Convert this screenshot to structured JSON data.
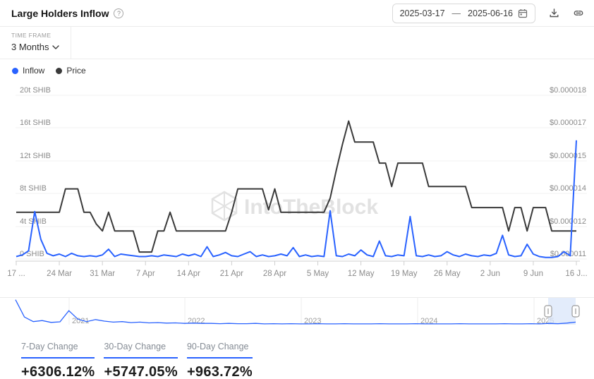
{
  "header": {
    "title": "Large Holders Inflow",
    "date_range": {
      "start": "2025-03-17",
      "separator": "—",
      "end": "2025-06-16"
    }
  },
  "toolbar": {
    "time_frame_label": "TIME FRAME",
    "time_frame_value": "3 Months"
  },
  "legend": [
    {
      "label": "Inflow",
      "color": "#2962ff"
    },
    {
      "label": "Price",
      "color": "#3a3a3a"
    }
  ],
  "watermark": "IntoTheBlock",
  "chart_data": [
    {
      "type": "line",
      "title": "Large Holders Inflow",
      "start_date": "2025-03-17",
      "end_date": "2025-06-16",
      "x_tick_labels": [
        "17 ...",
        "24 Mar",
        "31 Mar",
        "7 Apr",
        "14 Apr",
        "21 Apr",
        "28 Apr",
        "5 May",
        "12 May",
        "19 May",
        "26 May",
        "2 Jun",
        "9 Jun",
        "16 J..."
      ],
      "x_tick_days": [
        0,
        7,
        14,
        21,
        28,
        35,
        42,
        49,
        56,
        63,
        70,
        77,
        84,
        91
      ],
      "left_axis": {
        "unit": "SHIB",
        "ticks_bottom_to_top": [
          "0 SHIB",
          "4t SHIB",
          "8t SHIB",
          "12t SHIB",
          "16t SHIB",
          "20t SHIB"
        ],
        "range_trillions": [
          0,
          20
        ]
      },
      "right_axis": {
        "unit": "USD",
        "ticks_bottom_to_top": [
          "$0.000011",
          "$0.000012",
          "$0.000014",
          "$0.000015",
          "$0.000017",
          "$0.000018"
        ],
        "range_usd": [
          1.1e-05,
          1.8e-05
        ]
      },
      "grid": true,
      "legend_position": "top-left",
      "series": [
        {
          "name": "Inflow",
          "axis": "left",
          "unit": "trillion SHIB",
          "color": "#2962ff",
          "values": [
            0.3,
            0.5,
            1.0,
            5.8,
            2.4,
            0.7,
            0.4,
            0.6,
            0.3,
            0.7,
            0.4,
            0.3,
            0.4,
            0.3,
            0.5,
            1.2,
            0.3,
            0.6,
            0.5,
            0.4,
            0.3,
            0.3,
            0.4,
            0.3,
            0.5,
            0.4,
            0.3,
            0.6,
            0.4,
            0.6,
            0.3,
            1.5,
            0.3,
            0.5,
            0.8,
            0.4,
            0.3,
            0.6,
            0.9,
            0.3,
            0.5,
            0.3,
            0.4,
            0.6,
            0.4,
            1.4,
            0.3,
            0.5,
            0.3,
            0.4,
            0.3,
            5.9,
            0.4,
            0.3,
            0.6,
            0.4,
            1.1,
            0.5,
            0.3,
            2.2,
            0.4,
            0.3,
            0.5,
            0.4,
            5.2,
            0.4,
            0.3,
            0.5,
            0.3,
            0.4,
            0.9,
            0.5,
            0.3,
            0.6,
            0.4,
            0.3,
            0.5,
            0.4,
            0.7,
            2.9,
            0.5,
            0.3,
            0.4,
            1.8,
            0.6,
            0.3,
            0.2,
            0.2,
            0.3,
            0.9,
            0.4,
            14.5
          ]
        },
        {
          "name": "Price",
          "axis": "right",
          "unit": "micro-USD per SHIB",
          "color": "#3a3a3a",
          "values": [
            13.0,
            13.0,
            13.0,
            13.0,
            13.0,
            13.0,
            13.0,
            13.0,
            14.0,
            14.0,
            14.0,
            13.0,
            13.0,
            12.5,
            12.2,
            13.0,
            12.2,
            12.2,
            12.2,
            12.2,
            11.3,
            11.3,
            11.3,
            12.2,
            12.2,
            13.0,
            12.2,
            12.2,
            12.2,
            12.2,
            12.2,
            12.2,
            12.2,
            12.2,
            12.2,
            13.0,
            14.0,
            14.0,
            14.0,
            14.0,
            14.0,
            13.1,
            14.0,
            13.0,
            13.0,
            13.0,
            13.0,
            13.0,
            13.0,
            13.0,
            13.0,
            13.6,
            14.8,
            15.9,
            16.9,
            16.0,
            16.0,
            16.0,
            16.0,
            15.1,
            15.1,
            14.1,
            15.1,
            15.1,
            15.1,
            15.1,
            15.1,
            14.1,
            14.1,
            14.1,
            14.1,
            14.1,
            14.1,
            14.1,
            13.2,
            13.2,
            13.2,
            13.2,
            13.2,
            13.2,
            12.2,
            13.2,
            13.2,
            12.2,
            13.2,
            13.2,
            13.2,
            12.2,
            12.2,
            12.2,
            12.2,
            12.2
          ]
        }
      ]
    },
    {
      "type": "area",
      "name": "timeline-brush",
      "year_labels": [
        "2021",
        "2022",
        "2023",
        "2024",
        "2025"
      ],
      "selection": {
        "from": "2025-03-17",
        "to": "2025-06-16"
      },
      "values_normalized": [
        0.98,
        0.3,
        0.12,
        0.16,
        0.09,
        0.11,
        0.55,
        0.22,
        0.12,
        0.2,
        0.14,
        0.1,
        0.12,
        0.08,
        0.1,
        0.07,
        0.08,
        0.06,
        0.07,
        0.05,
        0.06,
        0.05,
        0.05,
        0.04,
        0.05,
        0.04,
        0.04,
        0.05,
        0.03,
        0.04,
        0.03,
        0.04,
        0.03,
        0.03,
        0.04,
        0.03,
        0.03,
        0.04,
        0.03,
        0.03,
        0.03,
        0.04,
        0.03,
        0.03,
        0.03,
        0.04,
        0.03,
        0.03,
        0.03,
        0.03,
        0.04,
        0.03,
        0.03,
        0.03,
        0.03,
        0.04,
        0.03,
        0.03,
        0.04,
        0.03,
        0.05,
        0.04,
        0.06,
        0.1
      ]
    }
  ],
  "stats": [
    {
      "label": "7-Day Change",
      "value": "+6306.12%"
    },
    {
      "label": "30-Day Change",
      "value": "+5747.05%"
    },
    {
      "label": "90-Day Change",
      "value": "+963.72%"
    }
  ]
}
